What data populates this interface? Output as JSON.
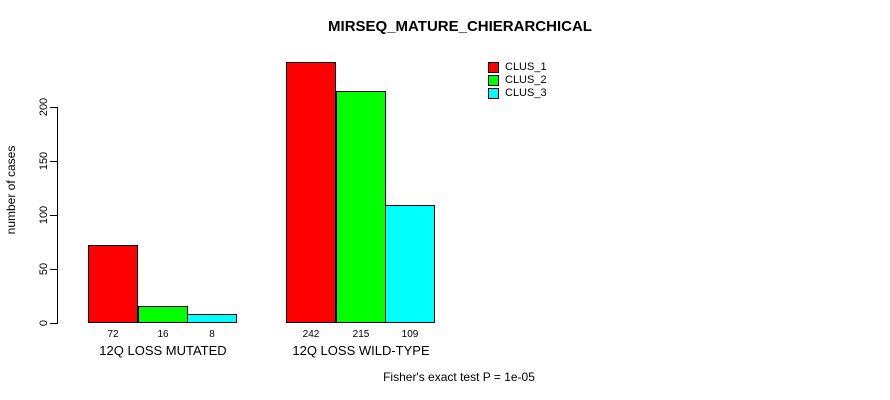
{
  "chart_data": {
    "type": "bar",
    "title": "MIRSEQ_MATURE_CHIERARCHICAL",
    "ylabel": "number of cases",
    "xlabel": "",
    "categories": [
      "12Q LOSS MUTATED",
      "12Q LOSS WILD-TYPE"
    ],
    "series": [
      {
        "name": "CLUS_1",
        "color": "#FF0000",
        "values": [
          72,
          242
        ]
      },
      {
        "name": "CLUS_2",
        "color": "#00FF00",
        "values": [
          16,
          215
        ]
      },
      {
        "name": "CLUS_3",
        "color": "#00FFFF",
        "values": [
          8,
          109
        ]
      }
    ],
    "yticks": [
      0,
      50,
      100,
      150,
      200
    ],
    "ylim": [
      0,
      250
    ],
    "grid": false,
    "bar_value_labels": true,
    "legend_position": "top-right",
    "annotation": "Fisher's exact test P = 1e-05"
  }
}
